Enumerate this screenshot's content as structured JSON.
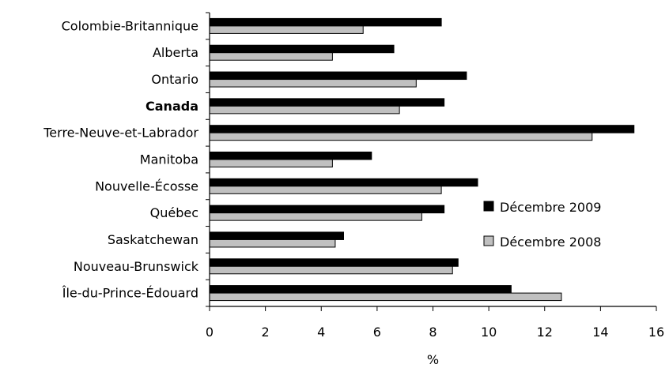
{
  "chart_data": {
    "type": "bar",
    "orientation": "horizontal",
    "categories": [
      "Colombie-Britannique",
      "Alberta",
      "Ontario",
      "Canada",
      "Terre-Neuve-et-Labrador",
      "Manitoba",
      "Nouvelle-Écosse",
      "Québec",
      "Saskatchewan",
      "Nouveau-Brunswick",
      "Île-du-Prince-Édouard"
    ],
    "bold_categories": [
      "Canada"
    ],
    "series": [
      {
        "name": "Décembre 2009",
        "color": "#000000",
        "values": [
          8.3,
          6.6,
          9.2,
          8.4,
          15.2,
          5.8,
          9.6,
          8.4,
          4.8,
          8.9,
          10.8
        ]
      },
      {
        "name": "Décembre 2008",
        "color": "#c0c0c0",
        "values": [
          5.5,
          4.4,
          7.4,
          6.8,
          13.7,
          4.4,
          8.3,
          7.6,
          4.5,
          8.7,
          12.6
        ]
      }
    ],
    "xlabel": "%",
    "ylabel": "",
    "title": "",
    "xlim": [
      0,
      16
    ],
    "xticks": [
      "0",
      "2",
      "4",
      "6",
      "8",
      "10",
      "12",
      "14",
      "16"
    ],
    "grid": false,
    "legend": "right"
  }
}
